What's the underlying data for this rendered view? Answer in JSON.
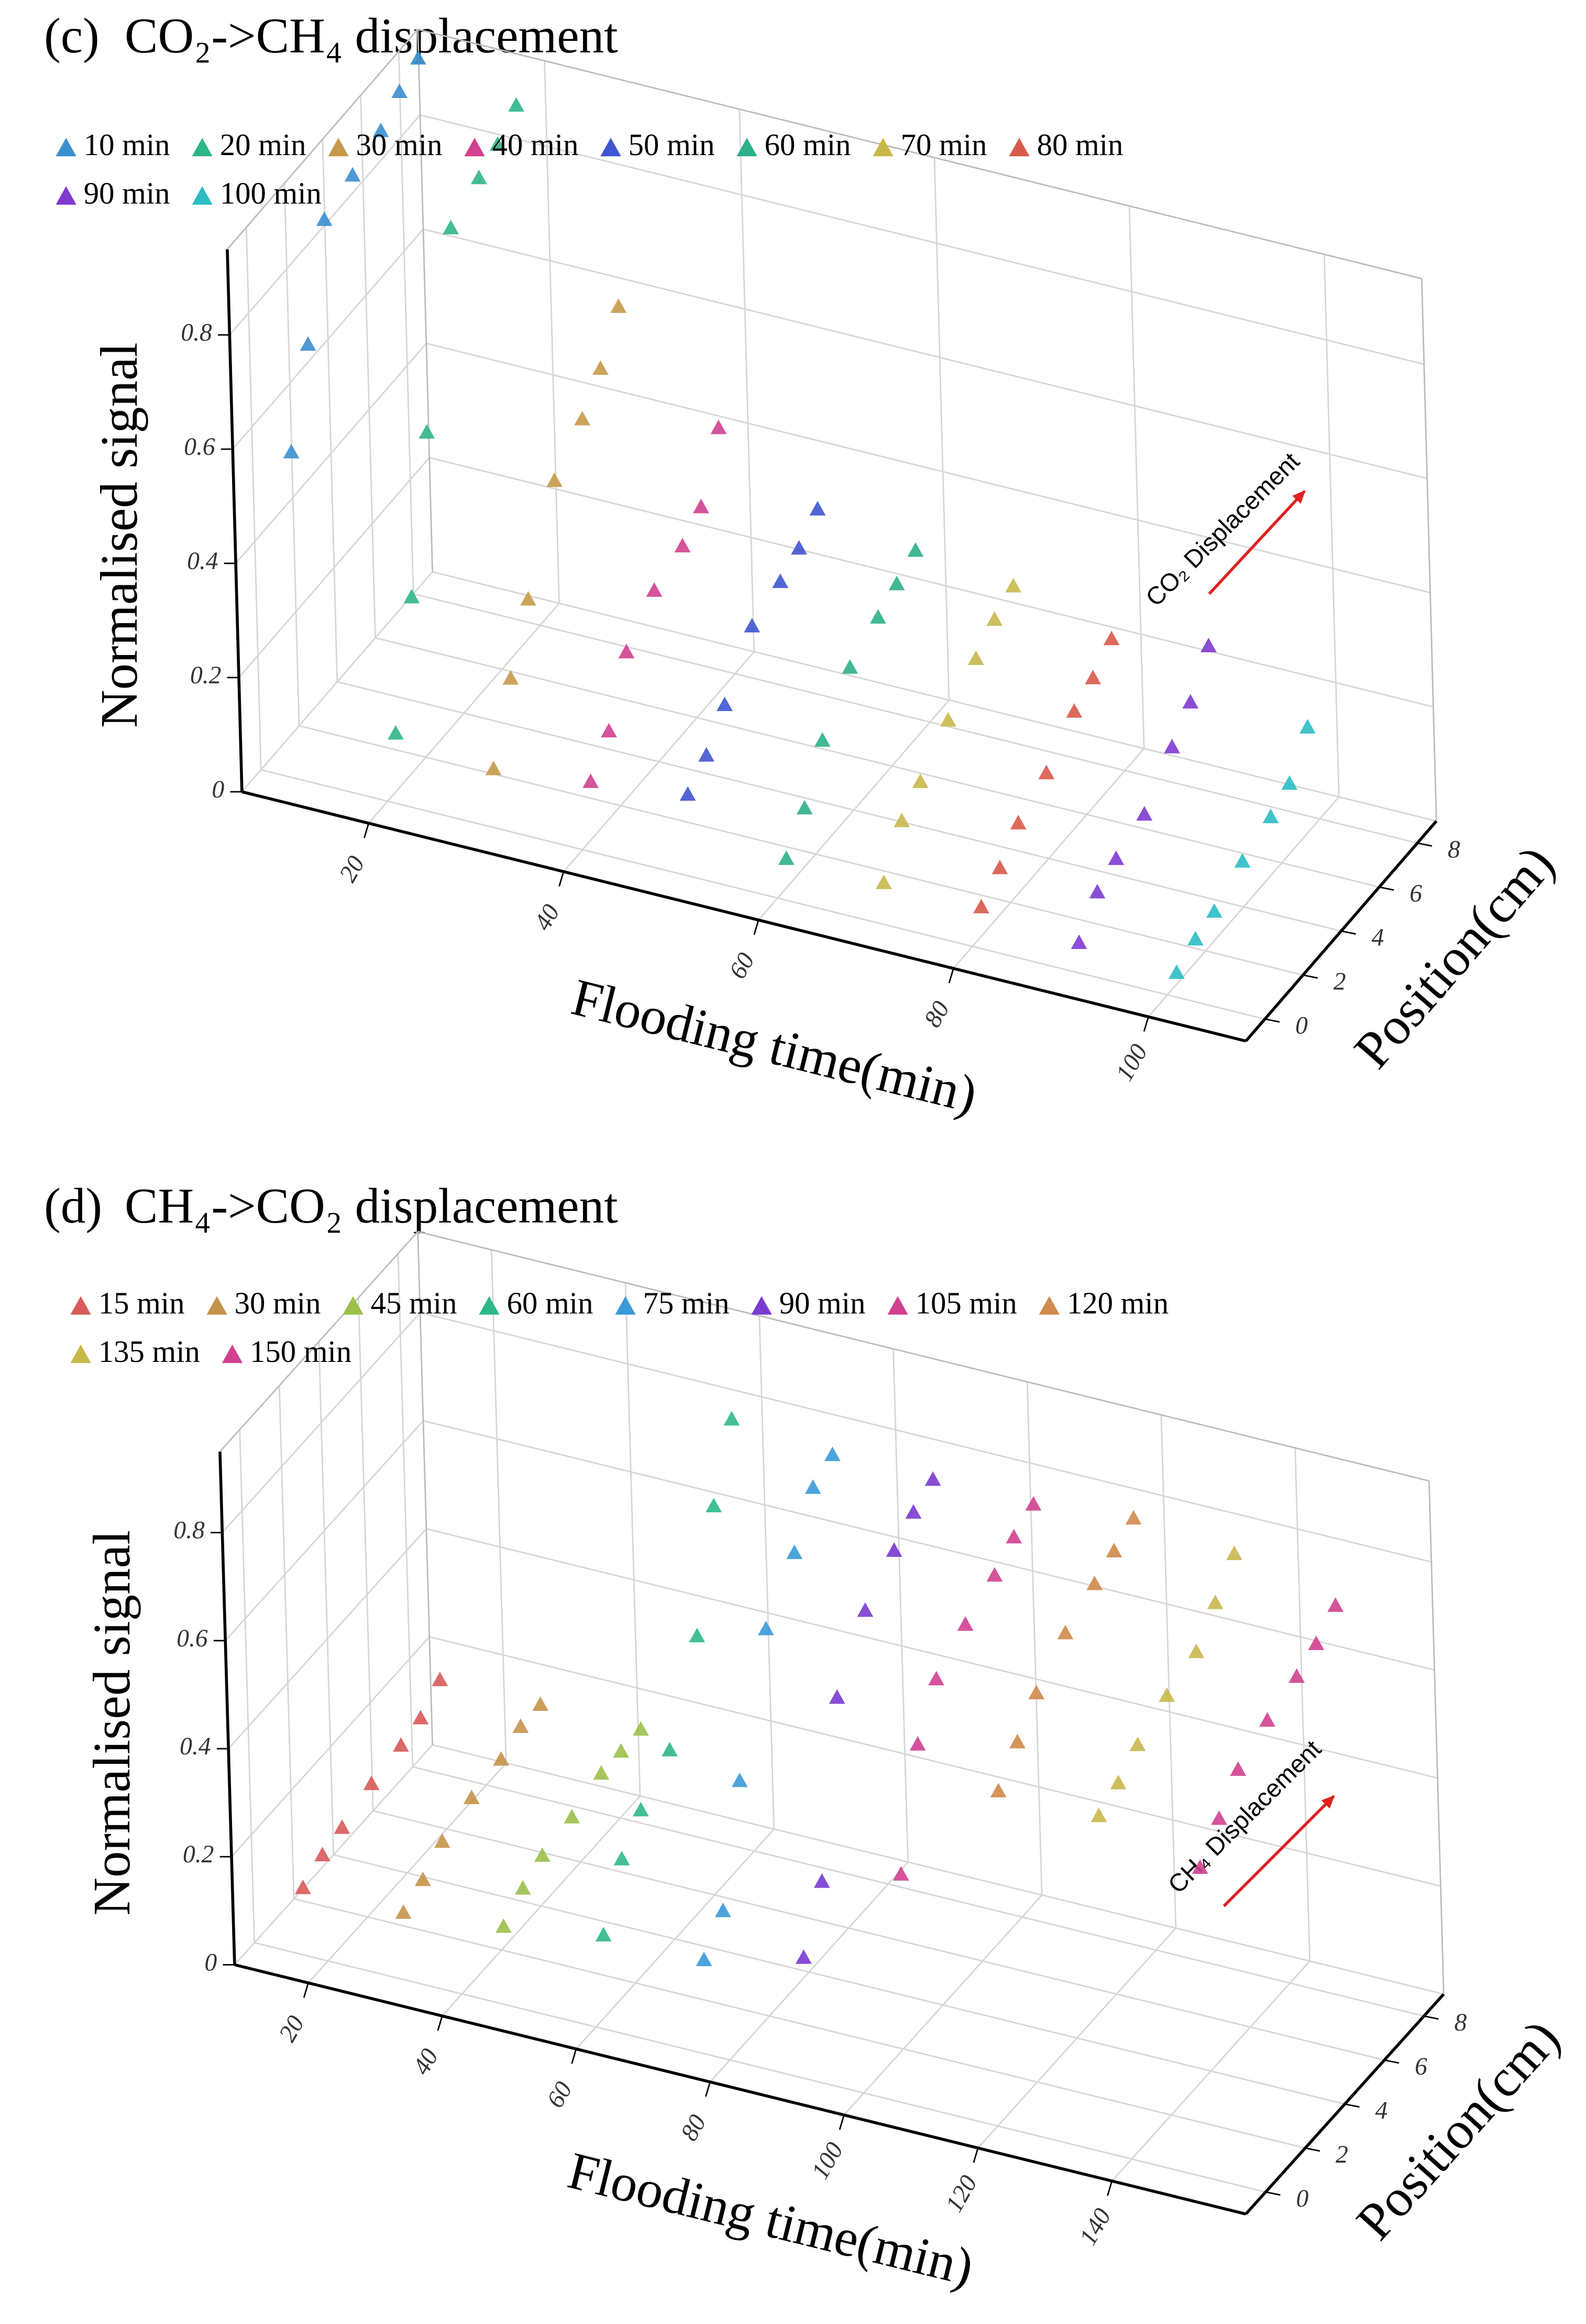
{
  "chart_data": [
    {
      "type": "scatter3d",
      "panel": "(c)",
      "title": "CO₂->CH₄ displacement",
      "xlabel": "Flooding time(min)",
      "ylabel": "Position(cm)",
      "zlabel": "Normalised signal",
      "annotation": "CO₂ Displacement",
      "xlim": [
        7,
        110
      ],
      "xticks": [
        20,
        40,
        60,
        80,
        100
      ],
      "ylim": [
        -1,
        9
      ],
      "yticks": [
        0,
        2,
        4,
        6,
        8
      ],
      "zlim": [
        0,
        0.95
      ],
      "zticks": [
        0,
        {
          "value": 0.2,
          "label": "0.2"
        },
        {
          "value": 0.4,
          "label": "0.4"
        },
        {
          "value": 0.6,
          "label": "0.6"
        },
        {
          "value": 0.8,
          "label": "0.8"
        }
      ],
      "grid": true,
      "series": [
        {
          "name": "10 min",
          "color": "#3a8fd0",
          "x": [
            10,
            10,
            10,
            10,
            10,
            10,
            10
          ],
          "y": [
            0.5,
            1.5,
            2.5,
            4,
            5.5,
            6.5,
            7.5
          ],
          "values": [
            0.55,
            0.7,
            0.88,
            0.9,
            0.92,
            0.95,
            0.97
          ]
        },
        {
          "name": "20 min",
          "color": "#2fb58a",
          "x": [
            20,
            20,
            20,
            20,
            20,
            20,
            20
          ],
          "y": [
            0.5,
            1.5,
            2.5,
            4,
            5.5,
            6.5,
            7.5
          ],
          "values": [
            0.1,
            0.3,
            0.55,
            0.85,
            0.88,
            0.9,
            0.93
          ]
        },
        {
          "name": "30 min",
          "color": "#c59a4a",
          "x": [
            30,
            30,
            30,
            30,
            30,
            30,
            30
          ],
          "y": [
            0.5,
            1.5,
            2.5,
            4,
            5.5,
            6.5,
            7.5
          ],
          "values": [
            0.08,
            0.2,
            0.3,
            0.45,
            0.5,
            0.55,
            0.62
          ]
        },
        {
          "name": "40 min",
          "color": "#d0408f",
          "x": [
            40,
            40,
            40,
            40,
            40,
            40,
            40
          ],
          "y": [
            0.5,
            1.5,
            2.5,
            4,
            5.5,
            6.5,
            7.5
          ],
          "values": [
            0.1,
            0.15,
            0.25,
            0.3,
            0.32,
            0.35,
            0.45
          ]
        },
        {
          "name": "50 min",
          "color": "#3f55cf",
          "x": [
            50,
            50,
            50,
            50,
            50,
            50,
            50
          ],
          "y": [
            0.5,
            1.5,
            2.5,
            4,
            5.5,
            6.5,
            7.5
          ],
          "values": [
            0.12,
            0.15,
            0.2,
            0.28,
            0.3,
            0.32,
            0.35
          ]
        },
        {
          "name": "60 min",
          "color": "#2db08a",
          "x": [
            60,
            60,
            60,
            60,
            60,
            60,
            60
          ],
          "y": [
            0.5,
            1.5,
            2.5,
            4,
            5.5,
            6.5,
            7.5
          ],
          "values": [
            0.05,
            0.1,
            0.18,
            0.25,
            0.28,
            0.3,
            0.32
          ]
        },
        {
          "name": "70 min",
          "color": "#c8b84a",
          "x": [
            70,
            70,
            70,
            70,
            70,
            70,
            70
          ],
          "y": [
            0.5,
            1.5,
            2.5,
            4,
            5.5,
            6.5,
            7.5
          ],
          "values": [
            0.05,
            0.12,
            0.15,
            0.2,
            0.25,
            0.28,
            0.3
          ]
        },
        {
          "name": "80 min",
          "color": "#d85a4a",
          "x": [
            80,
            80,
            80,
            80,
            80,
            80,
            80
          ],
          "y": [
            0.5,
            1.5,
            2.5,
            4,
            5.5,
            6.5,
            7.5
          ],
          "values": [
            0.05,
            0.08,
            0.12,
            0.15,
            0.2,
            0.22,
            0.25
          ]
        },
        {
          "name": "90 min",
          "color": "#7f3ad0",
          "x": [
            90,
            90,
            90,
            90,
            90,
            90,
            90
          ],
          "y": [
            0.5,
            1.5,
            2.5,
            4,
            5.5,
            6.5,
            7.5
          ],
          "values": [
            0.03,
            0.08,
            0.1,
            0.12,
            0.18,
            0.22,
            0.28
          ]
        },
        {
          "name": "100 min",
          "color": "#2bbcc4",
          "x": [
            100,
            100,
            100,
            100,
            100,
            100,
            100
          ],
          "y": [
            0.5,
            1.5,
            2.5,
            4,
            5.5,
            6.5,
            7.5
          ],
          "values": [
            0.02,
            0.04,
            0.05,
            0.08,
            0.1,
            0.12,
            0.18
          ]
        }
      ]
    },
    {
      "type": "scatter3d",
      "panel": "(d)",
      "title": "CH₄->CO₂ displacement",
      "xlabel": "Flooding time(min)",
      "ylabel": "Position(cm)",
      "zlabel": "Normalised signal",
      "annotation": "CH₄ Displacement",
      "xlim": [
        9,
        160
      ],
      "xticks": [
        20,
        40,
        60,
        80,
        100,
        120,
        140
      ],
      "ylim": [
        -1,
        9
      ],
      "yticks": [
        0,
        2,
        4,
        6,
        8
      ],
      "zlim": [
        0,
        0.95
      ],
      "zticks": [
        0,
        {
          "value": 0.2,
          "label": "0.2"
        },
        {
          "value": 0.4,
          "label": "0.4"
        },
        {
          "value": 0.6,
          "label": "0.6"
        },
        {
          "value": 0.8,
          "label": "0.8"
        }
      ],
      "grid": true,
      "series": [
        {
          "name": "15 min",
          "color": "#d85a5a",
          "x": [
            15,
            15,
            15,
            15,
            15,
            15,
            15
          ],
          "y": [
            0.5,
            1.5,
            2.5,
            4,
            5.5,
            6.5,
            7.5
          ],
          "values": [
            0.1,
            0.12,
            0.13,
            0.15,
            0.16,
            0.17,
            0.2
          ]
        },
        {
          "name": "30 min",
          "color": "#c5934a",
          "x": [
            30,
            30,
            30,
            30,
            30,
            30,
            30
          ],
          "y": [
            0.5,
            1.5,
            2.5,
            4,
            5.5,
            6.5,
            7.5
          ],
          "values": [
            0.1,
            0.12,
            0.15,
            0.17,
            0.18,
            0.2,
            0.2
          ]
        },
        {
          "name": "45 min",
          "color": "#9cc04a",
          "x": [
            45,
            45,
            45,
            45,
            45,
            45,
            45
          ],
          "y": [
            0.5,
            1.5,
            2.5,
            4,
            5.5,
            6.5,
            7.5
          ],
          "values": [
            0.12,
            0.15,
            0.17,
            0.18,
            0.2,
            0.2,
            0.2
          ]
        },
        {
          "name": "60 min",
          "color": "#2db88a",
          "x": [
            60,
            60,
            60,
            60,
            60,
            60,
            60
          ],
          "y": [
            0.5,
            1.5,
            2.5,
            4,
            5.5,
            6.5,
            7.5
          ],
          "values": [
            0.15,
            0.25,
            0.3,
            0.35,
            0.5,
            0.7,
            0.82
          ]
        },
        {
          "name": "75 min",
          "color": "#3a9ad8",
          "x": [
            75,
            75,
            75,
            75,
            75,
            75,
            75
          ],
          "y": [
            0.5,
            1.5,
            2.5,
            4,
            5.5,
            6.5,
            7.5
          ],
          "values": [
            0.15,
            0.2,
            0.4,
            0.62,
            0.7,
            0.78,
            0.8
          ]
        },
        {
          "name": "90 min",
          "color": "#7a3ad0",
          "x": [
            90,
            90,
            90,
            90,
            90,
            90,
            90
          ],
          "y": [
            0.5,
            1.5,
            2.5,
            4,
            5.5,
            6.5,
            7.5
          ],
          "values": [
            0.2,
            0.3,
            0.6,
            0.7,
            0.75,
            0.78,
            0.8
          ]
        },
        {
          "name": "105 min",
          "color": "#d0408f",
          "x": [
            105,
            105,
            105,
            105,
            105,
            105,
            105
          ],
          "y": [
            0.5,
            1.5,
            2.5,
            4,
            5.5,
            6.5,
            7.5
          ],
          "values": [
            0.4,
            0.6,
            0.68,
            0.72,
            0.75,
            0.78,
            0.8
          ]
        },
        {
          "name": "120 min",
          "color": "#d08a4a",
          "x": [
            120,
            120,
            120,
            120,
            120,
            120,
            120
          ],
          "y": [
            0.5,
            1.5,
            2.5,
            4,
            5.5,
            6.5,
            7.5
          ],
          "values": [
            0.6,
            0.65,
            0.7,
            0.75,
            0.78,
            0.8,
            0.82
          ]
        },
        {
          "name": "135 min",
          "color": "#c8b84a",
          "x": [
            135,
            135,
            135,
            135,
            135,
            135,
            135
          ],
          "y": [
            0.5,
            1.5,
            2.5,
            4,
            5.5,
            6.5,
            7.5
          ],
          "values": [
            0.6,
            0.62,
            0.65,
            0.68,
            0.7,
            0.75,
            0.8
          ]
        },
        {
          "name": "150 min",
          "color": "#d0408f",
          "x": [
            150,
            150,
            150,
            150,
            150,
            150,
            150
          ],
          "y": [
            0.5,
            1.5,
            2.5,
            4,
            5.5,
            6.5,
            7.5
          ],
          "values": [
            0.55,
            0.6,
            0.65,
            0.68,
            0.7,
            0.72,
            0.75
          ]
        }
      ]
    }
  ]
}
